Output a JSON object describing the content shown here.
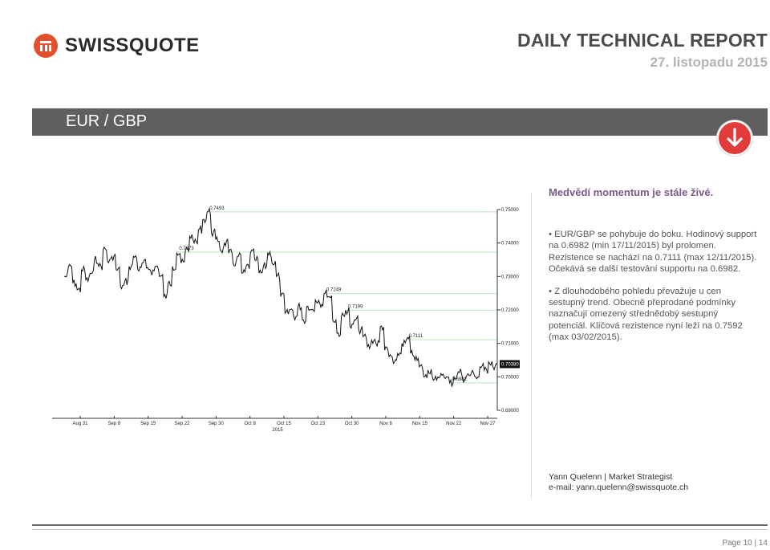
{
  "brand": {
    "name": "SWISSQUOTE",
    "accent": "#e2502c"
  },
  "report": {
    "title": "DAILY TECHNICAL REPORT",
    "date": "27. listopadu 2015"
  },
  "pair": "EUR / GBP",
  "trend_icon": "arrow-down-icon",
  "headline": "Medvědí momentum je stále živé.",
  "bullets": [
    "EUR/GBP se pohybuje do boku. Hodinový support na 0.6982 (min 17/11/2015) byl prolomen. Rezistence se nachází na 0.7111 (max 12/11/2015). Očekává se další testování supportu na 0.6982.",
    "Z dlouhodobého pohledu převažuje u cen sestupný trend. Obecně přeprodané podmínky naznačují omezený střednědobý sestupný potenciál. Klíčová rezistence nyní leží na 0.7592 (max 03/02/2015)."
  ],
  "author": {
    "line1": "Yann Quelenn | Market Strategist",
    "line2": "e-mail: yann.quelenn@swissquote.ch"
  },
  "footer": {
    "page": "Page 10 | 14"
  },
  "chart_data": {
    "type": "line",
    "ylim": [
      0.69,
      0.75
    ],
    "yticks": [
      "0.75000",
      "0.74000",
      "0.73000",
      "0.72000",
      "0.71000",
      "0.70000",
      "0.69000"
    ],
    "current_price": "0.70380",
    "x_labels": [
      "Aug 31",
      "Sep 8",
      "Sep 15",
      "Sep 22",
      "Sep 30",
      "Oct 8",
      "Oct 15",
      "Oct 23",
      "Oct 30",
      "Nov 8",
      "Nov 15",
      "Nov 22",
      "Nov 27"
    ],
    "year_label": "2015",
    "levels": [
      {
        "label": "0.7493",
        "value": 0.7493
      },
      {
        "label": "0.7373",
        "value": 0.7373
      },
      {
        "label": "0.7249",
        "value": 0.7249
      },
      {
        "label": "0.7199",
        "value": 0.7199
      },
      {
        "label": "0.7111",
        "value": 0.7111
      },
      {
        "label": "0.6982",
        "value": 0.6982
      }
    ],
    "series": [
      {
        "values": [
          0.73,
          0.733,
          0.728,
          0.726,
          0.732,
          0.729,
          0.731,
          0.735,
          0.733,
          0.738,
          0.7345,
          0.736,
          0.732,
          0.727,
          0.7285,
          0.733,
          0.736,
          0.732,
          0.734,
          0.7325,
          0.7315,
          0.733,
          0.73,
          0.724,
          0.728,
          0.733,
          0.737,
          0.734,
          0.738,
          0.742,
          0.74,
          0.744,
          0.747,
          0.7493,
          0.743,
          0.741,
          0.738,
          0.74,
          0.737,
          0.734,
          0.736,
          0.731,
          0.733,
          0.737,
          0.735,
          0.731,
          0.733,
          0.737,
          0.734,
          0.73,
          0.724,
          0.719,
          0.72,
          0.718,
          0.721,
          0.717,
          0.721,
          0.72,
          0.723,
          0.722,
          0.7249,
          0.724,
          0.717,
          0.713,
          0.718,
          0.7199,
          0.715,
          0.717,
          0.714,
          0.712,
          0.709,
          0.711,
          0.71,
          0.715,
          0.708,
          0.706,
          0.704,
          0.707,
          0.71,
          0.7111,
          0.707,
          0.705,
          0.703,
          0.7,
          0.702,
          0.7,
          0.699,
          0.701,
          0.6995,
          0.6982,
          0.7,
          0.7015,
          0.6995,
          0.7005,
          0.701,
          0.7,
          0.703,
          0.702,
          0.7045,
          0.703,
          0.7038
        ]
      }
    ]
  }
}
